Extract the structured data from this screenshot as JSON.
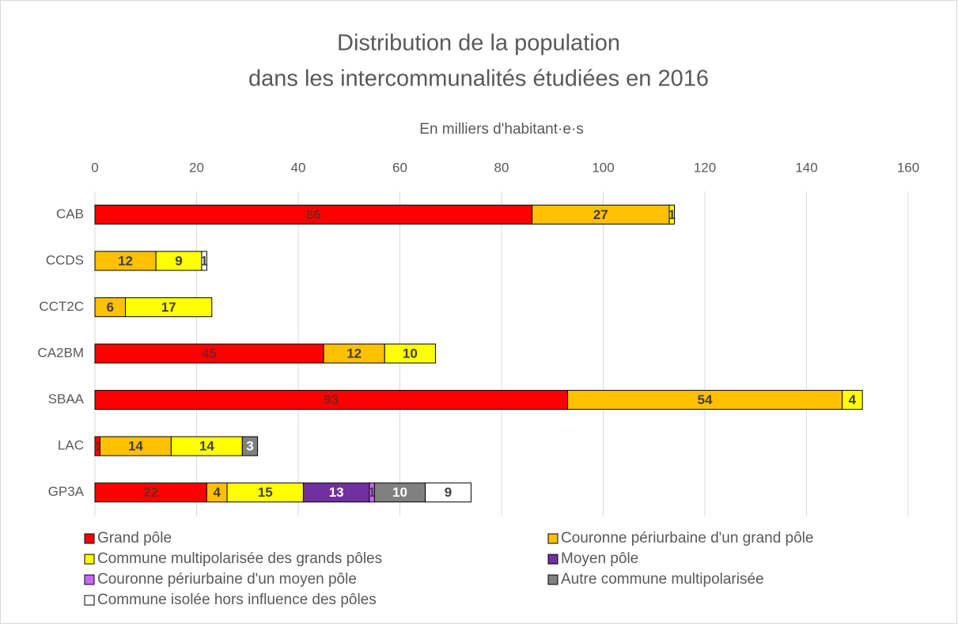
{
  "chart_data": {
    "type": "stacked_barh",
    "title": "Distribution de la population",
    "subtitle": "dans les intercommunalités étudiées en 2016",
    "x_label": "En milliers d'habitant·e·s",
    "categories": [
      "CAB",
      "CCDS",
      "CCT2C",
      "CA2BM",
      "SBAA",
      "LAC",
      "GP3A"
    ],
    "xlim": [
      0,
      160
    ],
    "xticks": [
      0,
      20,
      40,
      60,
      80,
      100,
      120,
      140,
      160
    ],
    "grid": true,
    "legend": "bottom",
    "series": [
      {
        "name": "Grand pôle",
        "color": "#ff0000",
        "values": [
          86,
          null,
          null,
          45,
          93,
          1,
          22
        ]
      },
      {
        "name": "Couronne périurbaine d'un grand pôle",
        "color": "#ffc000",
        "values": [
          27,
          12,
          6,
          12,
          54,
          14,
          4
        ]
      },
      {
        "name": "Commune multipolarisée des grands pôles",
        "color": "#ffff00",
        "values": [
          1,
          9,
          17,
          10,
          4,
          14,
          15
        ]
      },
      {
        "name": "Moyen pôle",
        "color": "#7030a0",
        "values": [
          null,
          null,
          null,
          null,
          null,
          null,
          13
        ]
      },
      {
        "name": "Couronne périurbaine d'un moyen pôle",
        "color": "#cc66ff",
        "values": [
          null,
          null,
          null,
          null,
          null,
          null,
          1
        ]
      },
      {
        "name": "Autre commune multipolarisée",
        "color": "#808080",
        "values": [
          null,
          null,
          null,
          null,
          null,
          3,
          10
        ]
      },
      {
        "name": "Commune isolée hors influence des pôles",
        "color": "#ffffff",
        "values": [
          null,
          1,
          null,
          null,
          null,
          null,
          9
        ]
      }
    ]
  }
}
